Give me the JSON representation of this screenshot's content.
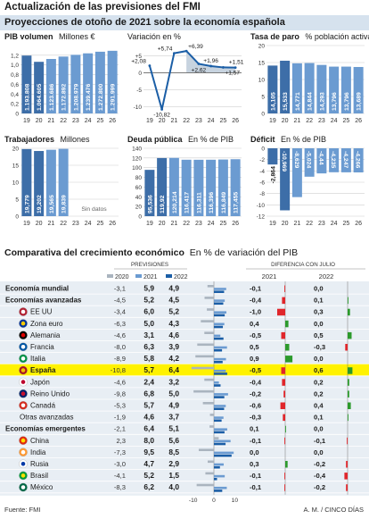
{
  "header": {
    "title": "Actualización de las previsiones del FMI",
    "subtitle": "Proyecciones de otoño de 2021 sobre la economía española"
  },
  "colors": {
    "dark_bar": "#3d6ea8",
    "light_bar": "#6b9bd1",
    "header_band": "#d6e2ee",
    "highlight": "#fff200",
    "positive": "#2c9a2c",
    "negative": "#e0262b",
    "line": "#1b5ea6"
  },
  "charts": [
    {
      "key": "pib",
      "title": "PIB volumen",
      "unit": "Millones €",
      "type": "bar",
      "categories": [
        "19",
        "20",
        "21",
        "22",
        "23",
        "24",
        "25",
        "26"
      ],
      "values": [
        1193808,
        1064605,
        1123686,
        1172892,
        1208979,
        1239476,
        1272800,
        1291999
      ],
      "labels": [
        "1.193.808",
        "1.064.605",
        "1.123.686",
        "1.172.892",
        "1.208.979",
        "1.239.476",
        "1.272.800",
        "1.291.999"
      ],
      "ylim": [
        0,
        1.4
      ],
      "yticks": [
        "0",
        "0,2",
        "0,4",
        "0,6",
        "0,8",
        "1,0",
        "1,2"
      ],
      "scale": 1000000
    },
    {
      "key": "var",
      "title": "",
      "unit": "Variación en %",
      "type": "line",
      "categories": [
        "19",
        "20",
        "21",
        "22",
        "23",
        "24",
        "25",
        "26"
      ],
      "values": [
        2.08,
        -10.82,
        5.74,
        6.39,
        2.62,
        1.96,
        1.57,
        1.51
      ],
      "labels": [
        "+2,08",
        "-10,82",
        "+5,74",
        "+6,39",
        "+2,62",
        "+1,96",
        "+1,57",
        "+1,51"
      ],
      "ylim": [
        -12,
        8
      ],
      "yticks": [
        "-10",
        "-5",
        "0",
        "+5"
      ]
    },
    {
      "key": "paro",
      "title": "Tasa de paro",
      "unit": "% población activa",
      "type": "bar",
      "categories": [
        "19",
        "20",
        "21",
        "22",
        "23",
        "24",
        "25",
        "26"
      ],
      "values": [
        14.105,
        15.533,
        14.771,
        14.844,
        14.293,
        13.796,
        13.796,
        13.689
      ],
      "labels": [
        "14,105",
        "15,533",
        "14,771",
        "14,844",
        "14,293",
        "13,796",
        "13,796",
        "13,689"
      ],
      "ylim": [
        0,
        20
      ],
      "yticks": [
        "0",
        "5",
        "10",
        "15",
        "20"
      ]
    },
    {
      "key": "trab",
      "title": "Trabajadores",
      "unit": "Millones",
      "type": "bar",
      "categories": [
        "19",
        "20",
        "21",
        "22",
        "23",
        "24",
        "25",
        "26"
      ],
      "values": [
        19.779,
        19.202,
        19.565,
        19.839
      ],
      "labels": [
        "19,779",
        "19,202",
        "19,565",
        "19,839"
      ],
      "no_data_label": "Sin datos",
      "ylim": [
        0,
        20
      ],
      "yticks": [
        "0",
        "5",
        "10",
        "15",
        "20"
      ]
    },
    {
      "key": "deuda",
      "title": "Deuda pública",
      "unit": "En % de PIB",
      "type": "bar",
      "categories": [
        "19",
        "20",
        "21",
        "22",
        "23",
        "24",
        "25",
        "26"
      ],
      "values": [
        95.536,
        119.92,
        120.214,
        116.417,
        116.311,
        116.396,
        116.849,
        117.455
      ],
      "labels": [
        "95,536",
        "119,92",
        "120,214",
        "116,417",
        "116,311",
        "116,396",
        "116,849",
        "117,455"
      ],
      "ylim": [
        0,
        140
      ],
      "yticks": [
        "0",
        "20",
        "40",
        "60",
        "80",
        "100",
        "120",
        "140"
      ]
    },
    {
      "key": "deficit",
      "title": "Déficit",
      "unit": "En % de PIB",
      "type": "bar",
      "categories": [
        "19",
        "20",
        "21",
        "22",
        "23",
        "24",
        "25",
        "26"
      ],
      "values": [
        -2.864,
        -10.969,
        -8.629,
        -5.024,
        -4.44,
        -4.235,
        -4.247,
        -4.266
      ],
      "labels": [
        "-2,864",
        "-10,969",
        "-8,629",
        "-5,024",
        "-4,44",
        "-4,235",
        "-4,247",
        "-4,266"
      ],
      "ylim": [
        -12,
        0
      ],
      "yticks": [
        "-12",
        "-10",
        "-8",
        "-6",
        "-4",
        "-2",
        "0"
      ]
    }
  ],
  "chart_data": {
    "type": "table",
    "title": "Comparativa del crecimiento económico",
    "unit": "En % de variación del PIB",
    "column_groups": [
      "PREVISIONES",
      "DIFERENCIA CON JULIO"
    ],
    "legend": [
      "2020",
      "2021",
      "2022"
    ],
    "diff_years": [
      "2021",
      "2022"
    ],
    "axis_ticks": [
      "-10",
      "0",
      "10"
    ],
    "rows": [
      {
        "name": "Economía mundial",
        "bold": true,
        "flag": "",
        "v2020": -3.1,
        "v2021": 5.9,
        "v2022": 4.9,
        "d2021": -0.1,
        "d2022": 0.0
      },
      {
        "name": "Economías avanzadas",
        "bold": true,
        "flag": "",
        "v2020": -4.5,
        "v2021": 5.2,
        "v2022": 4.5,
        "d2021": -0.4,
        "d2022": 0.1
      },
      {
        "name": "EE UU",
        "bold": false,
        "flag": "us",
        "v2020": -3.4,
        "v2021": 6.0,
        "v2022": 5.2,
        "d2021": -1.0,
        "d2022": 0.3
      },
      {
        "name": "Zona euro",
        "bold": false,
        "flag": "eu",
        "v2020": -6.3,
        "v2021": 5.0,
        "v2022": 4.3,
        "d2021": 0.4,
        "d2022": 0.0
      },
      {
        "name": "Alemania",
        "bold": false,
        "flag": "de",
        "v2020": -4.6,
        "v2021": 3.1,
        "v2022": 4.6,
        "d2021": -0.5,
        "d2022": 0.5
      },
      {
        "name": "Francia",
        "bold": false,
        "flag": "fr",
        "v2020": -8.0,
        "v2021": 6.3,
        "v2022": 3.9,
        "d2021": 0.5,
        "d2022": -0.3
      },
      {
        "name": "Italia",
        "bold": false,
        "flag": "it",
        "v2020": -8.9,
        "v2021": 5.8,
        "v2022": 4.2,
        "d2021": 0.9,
        "d2022": 0.0
      },
      {
        "name": "España",
        "bold": true,
        "flag": "es",
        "highlight": true,
        "v2020": -10.8,
        "v2021": 5.7,
        "v2022": 6.4,
        "d2021": -0.5,
        "d2022": 0.6
      },
      {
        "name": "Japón",
        "bold": false,
        "flag": "jp",
        "v2020": -4.6,
        "v2021": 2.4,
        "v2022": 3.2,
        "d2021": -0.4,
        "d2022": 0.2
      },
      {
        "name": "Reino Unido",
        "bold": false,
        "flag": "uk",
        "v2020": -9.8,
        "v2021": 6.8,
        "v2022": 5.0,
        "d2021": -0.2,
        "d2022": 0.2
      },
      {
        "name": "Canadá",
        "bold": false,
        "flag": "ca",
        "v2020": -5.3,
        "v2021": 5.7,
        "v2022": 4.9,
        "d2021": -0.6,
        "d2022": 0.4
      },
      {
        "name": "Otras avanzadas",
        "bold": false,
        "flag": "",
        "indent": true,
        "v2020": -1.9,
        "v2021": 4.6,
        "v2022": 3.7,
        "d2021": -0.3,
        "d2022": 0.1
      },
      {
        "name": "Economías emergentes",
        "bold": true,
        "flag": "",
        "v2020": -2.1,
        "v2021": 6.4,
        "v2022": 5.1,
        "d2021": 0.1,
        "d2022": 0.0
      },
      {
        "name": "China",
        "bold": false,
        "flag": "cn",
        "v2020": 2.3,
        "v2021": 8.0,
        "v2022": 5.6,
        "d2021": -0.1,
        "d2022": -0.1
      },
      {
        "name": "India",
        "bold": false,
        "flag": "in",
        "v2020": -7.3,
        "v2021": 9.5,
        "v2022": 8.5,
        "d2021": 0.0,
        "d2022": 0.0
      },
      {
        "name": "Rusia",
        "bold": false,
        "flag": "ru",
        "v2020": -3.0,
        "v2021": 4.7,
        "v2022": 2.9,
        "d2021": 0.3,
        "d2022": -0.2
      },
      {
        "name": "Brasil",
        "bold": false,
        "flag": "br",
        "v2020": -4.1,
        "v2021": 5.2,
        "v2022": 1.5,
        "d2021": -0.1,
        "d2022": -0.4
      },
      {
        "name": "México",
        "bold": false,
        "flag": "mx",
        "v2020": -8.3,
        "v2021": 6.2,
        "v2022": 4.0,
        "d2021": -0.1,
        "d2022": -0.2
      }
    ]
  },
  "footer": {
    "source": "Fuente: FMI",
    "credit": "A. M. / CINCO DÍAS"
  }
}
